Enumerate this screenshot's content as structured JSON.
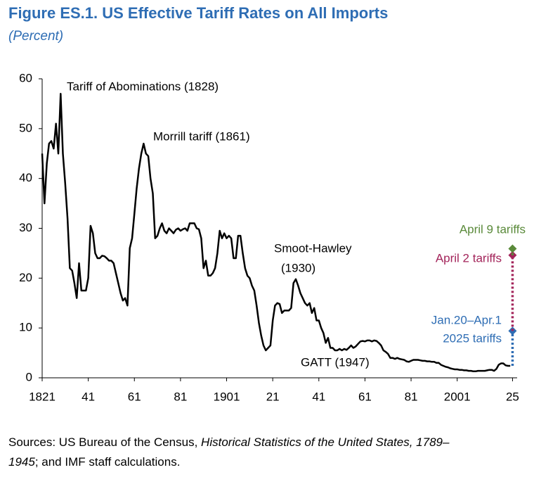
{
  "chart_data": {
    "type": "line",
    "title": "Figure ES.1.  US Effective Tariff Rates on All Imports",
    "subtitle": "(Percent)",
    "color": "#000000",
    "x": [
      1821,
      1822,
      1823,
      1824,
      1825,
      1826,
      1827,
      1828,
      1829,
      1830,
      1831,
      1832,
      1833,
      1834,
      1835,
      1836,
      1837,
      1838,
      1839,
      1840,
      1841,
      1842,
      1843,
      1844,
      1845,
      1846,
      1847,
      1848,
      1849,
      1850,
      1851,
      1852,
      1853,
      1854,
      1855,
      1856,
      1857,
      1858,
      1859,
      1860,
      1861,
      1862,
      1863,
      1864,
      1865,
      1866,
      1867,
      1868,
      1869,
      1870,
      1871,
      1872,
      1873,
      1874,
      1875,
      1876,
      1877,
      1878,
      1879,
      1880,
      1881,
      1882,
      1883,
      1884,
      1885,
      1886,
      1887,
      1888,
      1889,
      1890,
      1891,
      1892,
      1893,
      1894,
      1895,
      1896,
      1897,
      1898,
      1899,
      1900,
      1901,
      1902,
      1903,
      1904,
      1905,
      1906,
      1907,
      1908,
      1909,
      1910,
      1911,
      1912,
      1913,
      1914,
      1915,
      1916,
      1917,
      1918,
      1919,
      1920,
      1921,
      1922,
      1923,
      1924,
      1925,
      1926,
      1927,
      1928,
      1929,
      1930,
      1931,
      1932,
      1933,
      1934,
      1935,
      1936,
      1937,
      1938,
      1939,
      1940,
      1941,
      1942,
      1943,
      1944,
      1945,
      1946,
      1947,
      1948,
      1949,
      1950,
      1951,
      1952,
      1953,
      1954,
      1955,
      1956,
      1957,
      1958,
      1959,
      1960,
      1961,
      1962,
      1963,
      1964,
      1965,
      1966,
      1967,
      1968,
      1969,
      1970,
      1971,
      1972,
      1973,
      1974,
      1975,
      1976,
      1977,
      1978,
      1979,
      1980,
      1981,
      1982,
      1983,
      1984,
      1985,
      1986,
      1987,
      1988,
      1989,
      1990,
      1991,
      1992,
      1993,
      1994,
      1995,
      1996,
      1997,
      1998,
      1999,
      2000,
      2001,
      2002,
      2003,
      2004,
      2005,
      2006,
      2007,
      2008,
      2009,
      2010,
      2011,
      2012,
      2013,
      2014,
      2015,
      2016,
      2017,
      2018,
      2019,
      2020,
      2021,
      2022,
      2023,
      2024
    ],
    "values": [
      45,
      35,
      43,
      47,
      47.5,
      46,
      51,
      45,
      57,
      45,
      39,
      32,
      22,
      21.5,
      19,
      16,
      23,
      17.5,
      17.5,
      17.5,
      20,
      30.5,
      29,
      25,
      24,
      24,
      24.5,
      24.4,
      24,
      23.5,
      23.5,
      23,
      21,
      19,
      17,
      15.5,
      16,
      14.5,
      26,
      28,
      33,
      38,
      42,
      45,
      47,
      45,
      44.5,
      40,
      37,
      28,
      28.5,
      30,
      31,
      29.5,
      29,
      30,
      29.5,
      29,
      29.7,
      30,
      29.5,
      29.8,
      30,
      29.5,
      31,
      31,
      31,
      30,
      29.8,
      28,
      22,
      23.5,
      20.5,
      20.5,
      21,
      22,
      25,
      29.5,
      28,
      29,
      28,
      28.5,
      28,
      24,
      24,
      28.5,
      28.5,
      25,
      22,
      20.5,
      20,
      18.5,
      17.5,
      14.5,
      11,
      8.5,
      6.5,
      5.5,
      6,
      6.5,
      11.5,
      14.5,
      15,
      14.8,
      13,
      13.5,
      13.5,
      13.5,
      14,
      19,
      19.8,
      18.5,
      17,
      16,
      15,
      14.5,
      15,
      13,
      14,
      11.5,
      11.5,
      10,
      9,
      7,
      8,
      6,
      6,
      5.5,
      5.5,
      5.8,
      5.5,
      5.8,
      5.6,
      6,
      6.5,
      6,
      6.3,
      6.8,
      7.3,
      7.4,
      7.3,
      7.5,
      7.5,
      7.3,
      7.5,
      7.4,
      7,
      6.5,
      5.5,
      5.2,
      4.8,
      4,
      4,
      3.8,
      4,
      3.8,
      3.7,
      3.6,
      3.3,
      3.2,
      3.4,
      3.6,
      3.6,
      3.6,
      3.5,
      3.4,
      3.4,
      3.3,
      3.3,
      3.2,
      3.2,
      3,
      3,
      2.6,
      2.4,
      2.2,
      2.1,
      1.9,
      1.8,
      1.7,
      1.7,
      1.6,
      1.6,
      1.5,
      1.5,
      1.4,
      1.4,
      1.3,
      1.3,
      1.4,
      1.4,
      1.4,
      1.4,
      1.5,
      1.6,
      1.6,
      1.4,
      1.8,
      2.6,
      2.9,
      2.9,
      2.5,
      2.4,
      2.4
    ],
    "xlim": [
      1821,
      2027
    ],
    "xticks": [
      1821,
      {
        "value": 1841,
        "label": "41"
      },
      {
        "value": 1861,
        "label": "61"
      },
      {
        "value": 1881,
        "label": "81"
      },
      1901,
      {
        "value": 1921,
        "label": "21"
      },
      {
        "value": 1941,
        "label": "41"
      },
      {
        "value": 1961,
        "label": "61"
      },
      {
        "value": 1981,
        "label": "81"
      },
      2001,
      {
        "value": 2025,
        "label": "25"
      }
    ],
    "ylim": [
      0,
      60
    ],
    "yticks": [
      0,
      10,
      20,
      30,
      40,
      50,
      60
    ],
    "annotations": [
      "Tariff of Abominations (1828)",
      "Morrill tariff (1861)",
      "Smoot-Hawley",
      "(1930)",
      "GATT (1947)"
    ],
    "markers": [
      {
        "label": [
          "Jan.20–Apr.1",
          "2025 tariffs"
        ],
        "x": 2025,
        "value": 9.4,
        "color": "#2e6db4"
      },
      {
        "label": [
          "April 2 tariffs"
        ],
        "x": 2025,
        "value": 24.6,
        "color": "#a3245a"
      },
      {
        "label": [
          "April 9 tariffs"
        ],
        "x": 2025,
        "value": 25.9,
        "color": "#5a8a3a"
      }
    ],
    "note": [
      "Sources: US Bureau of the Census, ",
      "Historical Statistics of the United States, 1789–",
      "1945",
      "; and IMF staff calculations."
    ]
  }
}
